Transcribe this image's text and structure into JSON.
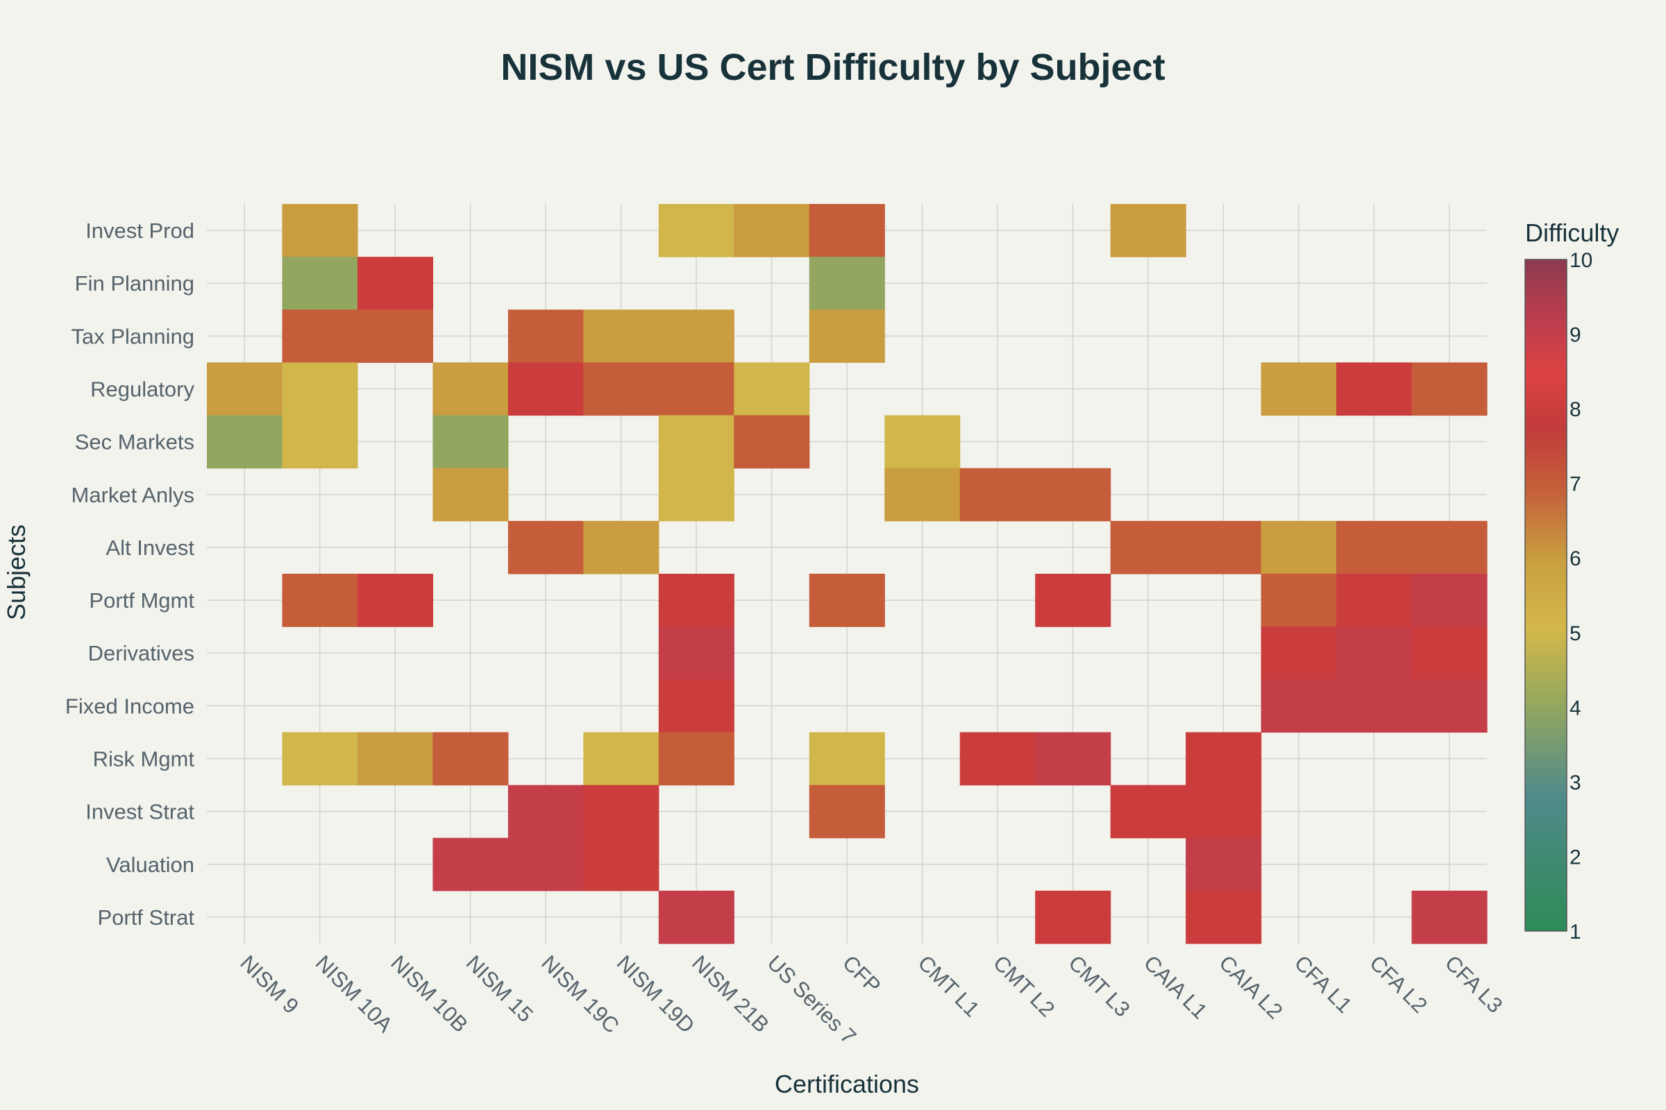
{
  "chart_data": {
    "type": "heatmap",
    "title": "NISM vs US Cert Difficulty by Subject",
    "xlabel": "Certifications",
    "ylabel": "Subjects",
    "colorbar": {
      "title": "Difficulty",
      "range": [
        1,
        10
      ],
      "ticks": [
        "1",
        "2",
        "3",
        "4",
        "5",
        "6",
        "7",
        "8",
        "9",
        "10"
      ],
      "colorscale": [
        [
          0.0,
          "#2e8b57"
        ],
        [
          0.2,
          "#4f8a8b"
        ],
        [
          0.35,
          "#9aaa5a"
        ],
        [
          0.45,
          "#d4b84a"
        ],
        [
          0.55,
          "#c9a040"
        ],
        [
          0.65,
          "#c5633a"
        ],
        [
          0.75,
          "#c23b3b"
        ],
        [
          0.83,
          "#dc4242"
        ],
        [
          0.92,
          "#b83c4e"
        ],
        [
          1.0,
          "#8b3a4e"
        ]
      ]
    },
    "x_categories": [
      "NISM 9",
      "NISM 10A",
      "NISM 10B",
      "NISM 15",
      "NISM 19C",
      "NISM 19D",
      "NISM 21B",
      "US Series 7",
      "CFP",
      "CMT L1",
      "CMT L2",
      "CMT L3",
      "CAIA L1",
      "CAIA L2",
      "CFA L1",
      "CFA L2",
      "CFA L3"
    ],
    "y_categories": [
      "Invest Prod",
      "Fin Planning",
      "Tax Planning",
      "Regulatory",
      "Sec Markets",
      "Market Anlys",
      "Alt Invest",
      "Portf Mgmt",
      "Derivatives",
      "Fixed Income",
      "Risk Mgmt",
      "Invest Strat",
      "Valuation",
      "Portf Strat"
    ],
    "z": [
      [
        null,
        6,
        null,
        null,
        null,
        null,
        5,
        6,
        7,
        null,
        null,
        null,
        6,
        null,
        null,
        null,
        null
      ],
      [
        null,
        4,
        8,
        null,
        null,
        null,
        null,
        null,
        4,
        null,
        null,
        null,
        null,
        null,
        null,
        null,
        null
      ],
      [
        null,
        7,
        7,
        null,
        7,
        6,
        6,
        null,
        6,
        null,
        null,
        null,
        null,
        null,
        null,
        null,
        null
      ],
      [
        6,
        5,
        null,
        6,
        8,
        7,
        7,
        5,
        null,
        null,
        null,
        null,
        null,
        null,
        6,
        8,
        7
      ],
      [
        4,
        5,
        null,
        4,
        null,
        null,
        5,
        7,
        null,
        5,
        null,
        null,
        null,
        null,
        null,
        null,
        null
      ],
      [
        null,
        null,
        null,
        6,
        null,
        null,
        5,
        null,
        null,
        6,
        7,
        7,
        null,
        null,
        null,
        null,
        null
      ],
      [
        null,
        null,
        null,
        null,
        7,
        6,
        null,
        null,
        null,
        null,
        null,
        null,
        7,
        7,
        6,
        7,
        7
      ],
      [
        null,
        7,
        8,
        null,
        null,
        null,
        8,
        null,
        7,
        null,
        null,
        8,
        null,
        null,
        7,
        8,
        9
      ],
      [
        null,
        null,
        null,
        null,
        null,
        null,
        9,
        null,
        null,
        null,
        null,
        null,
        null,
        null,
        8,
        9,
        8
      ],
      [
        null,
        null,
        null,
        null,
        null,
        null,
        8,
        null,
        null,
        null,
        null,
        null,
        null,
        null,
        9,
        9,
        9
      ],
      [
        null,
        5,
        6,
        7,
        null,
        5,
        7,
        null,
        5,
        null,
        8,
        9,
        null,
        8,
        null,
        null,
        null
      ],
      [
        null,
        null,
        null,
        null,
        9,
        8,
        null,
        null,
        7,
        null,
        null,
        null,
        8,
        8,
        null,
        null,
        null
      ],
      [
        null,
        null,
        null,
        9,
        9,
        8,
        null,
        null,
        null,
        null,
        null,
        null,
        null,
        9,
        null,
        null,
        null
      ],
      [
        null,
        null,
        null,
        null,
        null,
        null,
        9,
        null,
        null,
        null,
        null,
        8,
        null,
        8,
        null,
        null,
        9
      ]
    ]
  }
}
